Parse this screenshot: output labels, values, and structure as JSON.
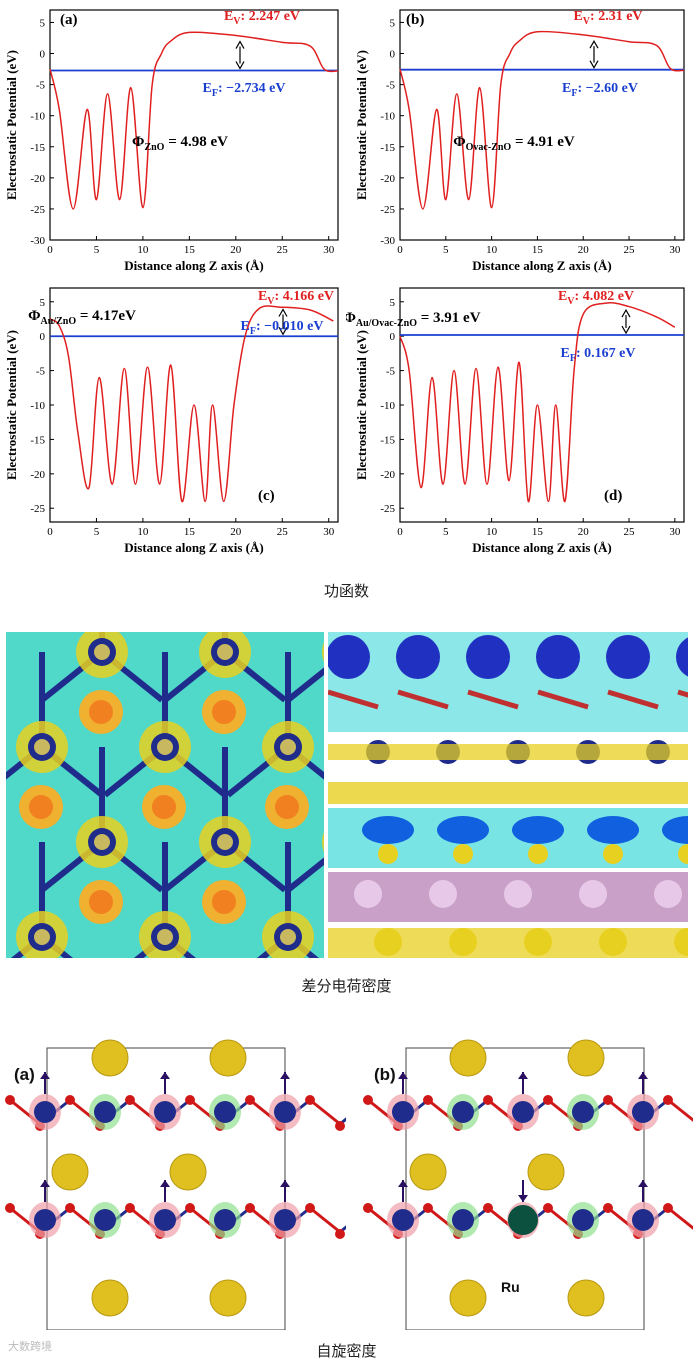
{
  "chart_data": [
    {
      "panel": "(a)",
      "type": "line",
      "xlabel": "Distance along Z axis (Å)",
      "ylabel": "Electrostatic Potential (eV)",
      "xlim": [
        0,
        31
      ],
      "ylim": [
        -30,
        7
      ],
      "xticks": [
        0,
        5,
        10,
        15,
        20,
        25,
        30
      ],
      "yticks": [
        5,
        0,
        -5,
        -10,
        -15,
        -20,
        -25,
        -30
      ],
      "ev_label": "E_V: 2.247 eV",
      "ef_label": "E_F: −2.734 eV",
      "phi_label": "Φ_ZnO = 4.98 eV",
      "fermi_level": -2.734,
      "vacuum_level": 2.247,
      "series": [
        {
          "x": [
            0,
            1,
            2.5,
            4,
            5,
            6.2,
            7.5,
            8.7,
            10,
            11,
            12,
            13,
            15,
            20,
            25,
            28,
            29.5,
            31
          ],
          "y": [
            -2.5,
            -9,
            -25,
            -9,
            -23.5,
            -6.5,
            -23.5,
            -5.5,
            -24.8,
            -5,
            0,
            2,
            3.4,
            2.9,
            1.8,
            1.2,
            -2.5,
            -2.8
          ]
        }
      ]
    },
    {
      "panel": "(b)",
      "type": "line",
      "xlabel": "Distance along Z axis (Å)",
      "ylabel": "Electrostatic Potential (eV)",
      "xlim": [
        0,
        31
      ],
      "ylim": [
        -30,
        7
      ],
      "xticks": [
        0,
        5,
        10,
        15,
        20,
        25,
        30
      ],
      "yticks": [
        5,
        0,
        -5,
        -10,
        -15,
        -20,
        -25,
        -30
      ],
      "ev_label": "E_V: 2.31 eV",
      "ef_label": "E_F: −2.60 eV",
      "phi_label": "Φ_Ovac-ZnO = 4.91 eV",
      "fermi_level": -2.6,
      "vacuum_level": 2.31,
      "series": [
        {
          "x": [
            0,
            1,
            2.5,
            4,
            5,
            6.2,
            7.5,
            8.7,
            10,
            11,
            12,
            13,
            15,
            20,
            25,
            28,
            29.5,
            31
          ],
          "y": [
            -2.5,
            -9,
            -25,
            -9,
            -23.5,
            -6.5,
            -23.5,
            -5.5,
            -24.8,
            -5,
            0,
            2,
            3.5,
            3.0,
            1.9,
            1.3,
            -2.4,
            -2.7
          ]
        }
      ]
    },
    {
      "panel": "(c)",
      "type": "line",
      "xlabel": "Distance along Z axis (Å)",
      "ylabel": "Electrostatic Potential (eV)",
      "xlim": [
        0,
        31
      ],
      "ylim": [
        -27,
        7
      ],
      "xticks": [
        0,
        5,
        10,
        15,
        20,
        25,
        30
      ],
      "yticks": [
        5,
        0,
        -5,
        -10,
        -15,
        -20,
        -25
      ],
      "ev_label": "E_V: 4.166 eV",
      "ef_label": "E_F: −0.010 eV",
      "phi_label": "Φ_Au/ZnO = 4.17eV",
      "fermi_level": -0.01,
      "vacuum_level": 4.166,
      "series": [
        {
          "x": [
            0,
            1,
            2,
            3,
            4.2,
            5.3,
            6.7,
            8,
            9.2,
            10.5,
            11.8,
            13,
            14.2,
            15.5,
            16.7,
            17.5,
            18.7,
            19.8,
            21,
            22.5,
            25,
            28,
            30.5
          ],
          "y": [
            2.5,
            1.5,
            -3,
            -14,
            -22,
            -6,
            -21.5,
            -4.7,
            -21.5,
            -4.5,
            -21.5,
            -4.2,
            -24,
            -10,
            -24,
            -10,
            -24,
            -10,
            0,
            4.0,
            4.2,
            3.8,
            2.2
          ]
        }
      ]
    },
    {
      "panel": "(d)",
      "type": "line",
      "xlabel": "Distance along Z axis (Å)",
      "ylabel": "Electrostatic Potential (eV)",
      "xlim": [
        0,
        31
      ],
      "ylim": [
        -27,
        7
      ],
      "xticks": [
        0,
        5,
        10,
        15,
        20,
        25,
        30
      ],
      "yticks": [
        5,
        0,
        -5,
        -10,
        -15,
        -20,
        -25
      ],
      "ev_label": "E_V: 4.082 eV",
      "ef_label": "E_F: 0.167 eV",
      "phi_label": "Φ_Au/Ovac-ZnO = 3.91 eV",
      "fermi_level": 0.167,
      "vacuum_level": 4.082,
      "series": [
        {
          "x": [
            0,
            1,
            2.3,
            3.5,
            4.7,
            5.9,
            7.1,
            8.3,
            9.5,
            10.7,
            11.9,
            13,
            14,
            15,
            16.2,
            17,
            18,
            19,
            20,
            22.5,
            25,
            28,
            30
          ],
          "y": [
            0,
            -5,
            -22,
            -6,
            -21.5,
            -5,
            -21.5,
            -4.7,
            -21.5,
            -4.5,
            -21,
            -3.8,
            -24,
            -10,
            -24,
            -10,
            -24,
            -5,
            3.2,
            4.8,
            4.3,
            2.8,
            1.3
          ]
        }
      ]
    }
  ],
  "captions": {
    "work_function": "功函数",
    "charge_density": "差分电荷密度",
    "spin_density": "自旋密度"
  },
  "spin_panels": {
    "label_a": "(a)",
    "label_b": "(b)",
    "ru_label": "Ru"
  },
  "watermark": "大数跨境",
  "colors": {
    "curve": "#e02020",
    "fermi": "#1a3fd0",
    "charge_yellow": "#e8d020",
    "charge_cyan": "#40d8d8",
    "atom_blue": "#1f2c8c",
    "atom_red": "#d01818",
    "atom_gold": "#e0c020"
  }
}
